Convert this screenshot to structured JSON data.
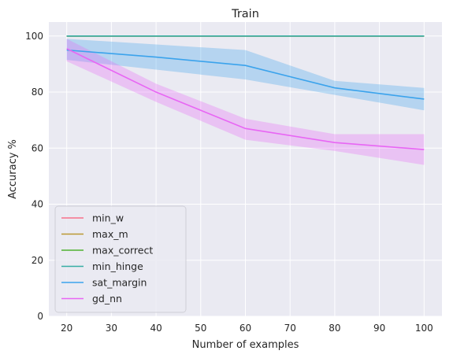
{
  "chart_data": {
    "type": "line",
    "title": "Train",
    "xlabel": "Number of examples",
    "ylabel": "Accuracy %",
    "xlim": [
      16,
      104
    ],
    "ylim": [
      0,
      105
    ],
    "xticks": [
      20,
      30,
      40,
      50,
      60,
      70,
      80,
      90,
      100
    ],
    "yticks": [
      0,
      20,
      40,
      60,
      80,
      100
    ],
    "x": [
      20,
      40,
      60,
      80,
      100
    ],
    "grid": true,
    "legend": "lower-left",
    "series": [
      {
        "name": "min_w",
        "color": "#f77189",
        "values": [
          100,
          100,
          100,
          100,
          100
        ]
      },
      {
        "name": "max_m",
        "color": "#bb9832",
        "values": [
          100,
          100,
          100,
          100,
          100
        ]
      },
      {
        "name": "max_correct",
        "color": "#50b131",
        "values": [
          100,
          100,
          100,
          100,
          100
        ]
      },
      {
        "name": "min_hinge",
        "color": "#36ada4",
        "values": [
          100,
          100,
          100,
          100,
          100
        ]
      },
      {
        "name": "sat_margin",
        "color": "#3ba3ec",
        "values": [
          95,
          92.5,
          89.5,
          81.5,
          77.5
        ],
        "lower": [
          91.5,
          88,
          84.5,
          79,
          73.5
        ],
        "upper": [
          99,
          97,
          95,
          84,
          81.5
        ]
      },
      {
        "name": "gd_nn",
        "color": "#e866f4",
        "values": [
          95.5,
          80,
          67,
          62,
          59.5
        ],
        "lower": [
          91,
          76.5,
          63,
          59,
          54
        ],
        "upper": [
          99,
          83,
          70.5,
          65,
          65
        ]
      }
    ]
  }
}
